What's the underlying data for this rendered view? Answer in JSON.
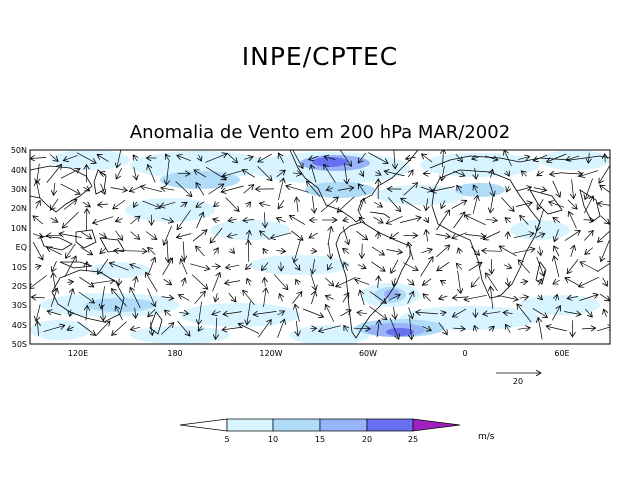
{
  "header": {
    "org_title": "INPE/CPTEC",
    "map_title": "Anomalia de Vento em 200 hPa MAR/2002"
  },
  "map": {
    "lat_labels": [
      "50N",
      "40N",
      "30N",
      "20N",
      "10N",
      "EQ",
      "10S",
      "20S",
      "30S",
      "40S",
      "50S"
    ],
    "lon_labels": [
      "120E",
      "180",
      "120W",
      "60W",
      "0",
      "60E"
    ],
    "reference_vector_label": "20",
    "colors": {
      "land_outline": "#000000",
      "shade_5_10": "#d8f4ff",
      "shade_10_15": "#b0dcf8",
      "shade_15_20": "#98b4f8",
      "shade_20_25": "#6870f0",
      "shade_25_plus": "#a020c0"
    }
  },
  "colorbar": {
    "labels": [
      "5",
      "10",
      "15",
      "20",
      "25"
    ],
    "colors": [
      "#d8f4ff",
      "#b0dcf8",
      "#98b4f8",
      "#6870f0"
    ],
    "units": "m/s"
  }
}
